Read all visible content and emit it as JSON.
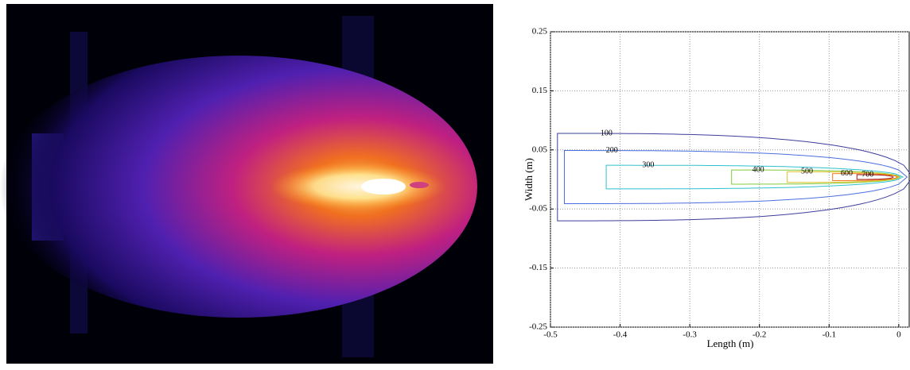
{
  "chart_data": {
    "type": "contour",
    "xlabel": "Length (m)",
    "ylabel": "Width (m)",
    "xlim": [
      -0.5,
      0.015
    ],
    "ylim": [
      -0.25,
      0.25
    ],
    "xticks": [
      -0.5,
      -0.4,
      -0.3,
      -0.2,
      -0.1,
      0
    ],
    "yticks": [
      -0.25,
      -0.15,
      -0.05,
      0.05,
      0.15,
      0.25
    ],
    "grid": true,
    "series": [
      {
        "name": "100",
        "color": "#3d3d9c",
        "x": [
          -0.49,
          0.02
        ],
        "halfwidth": 0.074
      },
      {
        "name": "200",
        "color": "#4a6ee0",
        "x": [
          -0.48,
          0.012
        ],
        "halfwidth": 0.045
      },
      {
        "name": "300",
        "color": "#30c0d0",
        "x": [
          -0.42,
          0.006
        ],
        "halfwidth": 0.02
      },
      {
        "name": "400",
        "color": "#80cc40",
        "x": [
          -0.24,
          0.002
        ],
        "halfwidth": 0.012
      },
      {
        "name": "500",
        "color": "#e0c020",
        "x": [
          -0.16,
          0.0
        ],
        "halfwidth": 0.009
      },
      {
        "name": "600",
        "color": "#f07a20",
        "x": [
          -0.095,
          -0.002
        ],
        "halfwidth": 0.006
      },
      {
        "name": "700",
        "color": "#a01818",
        "x": [
          -0.06,
          -0.008
        ],
        "halfwidth": 0.004
      }
    ]
  }
}
